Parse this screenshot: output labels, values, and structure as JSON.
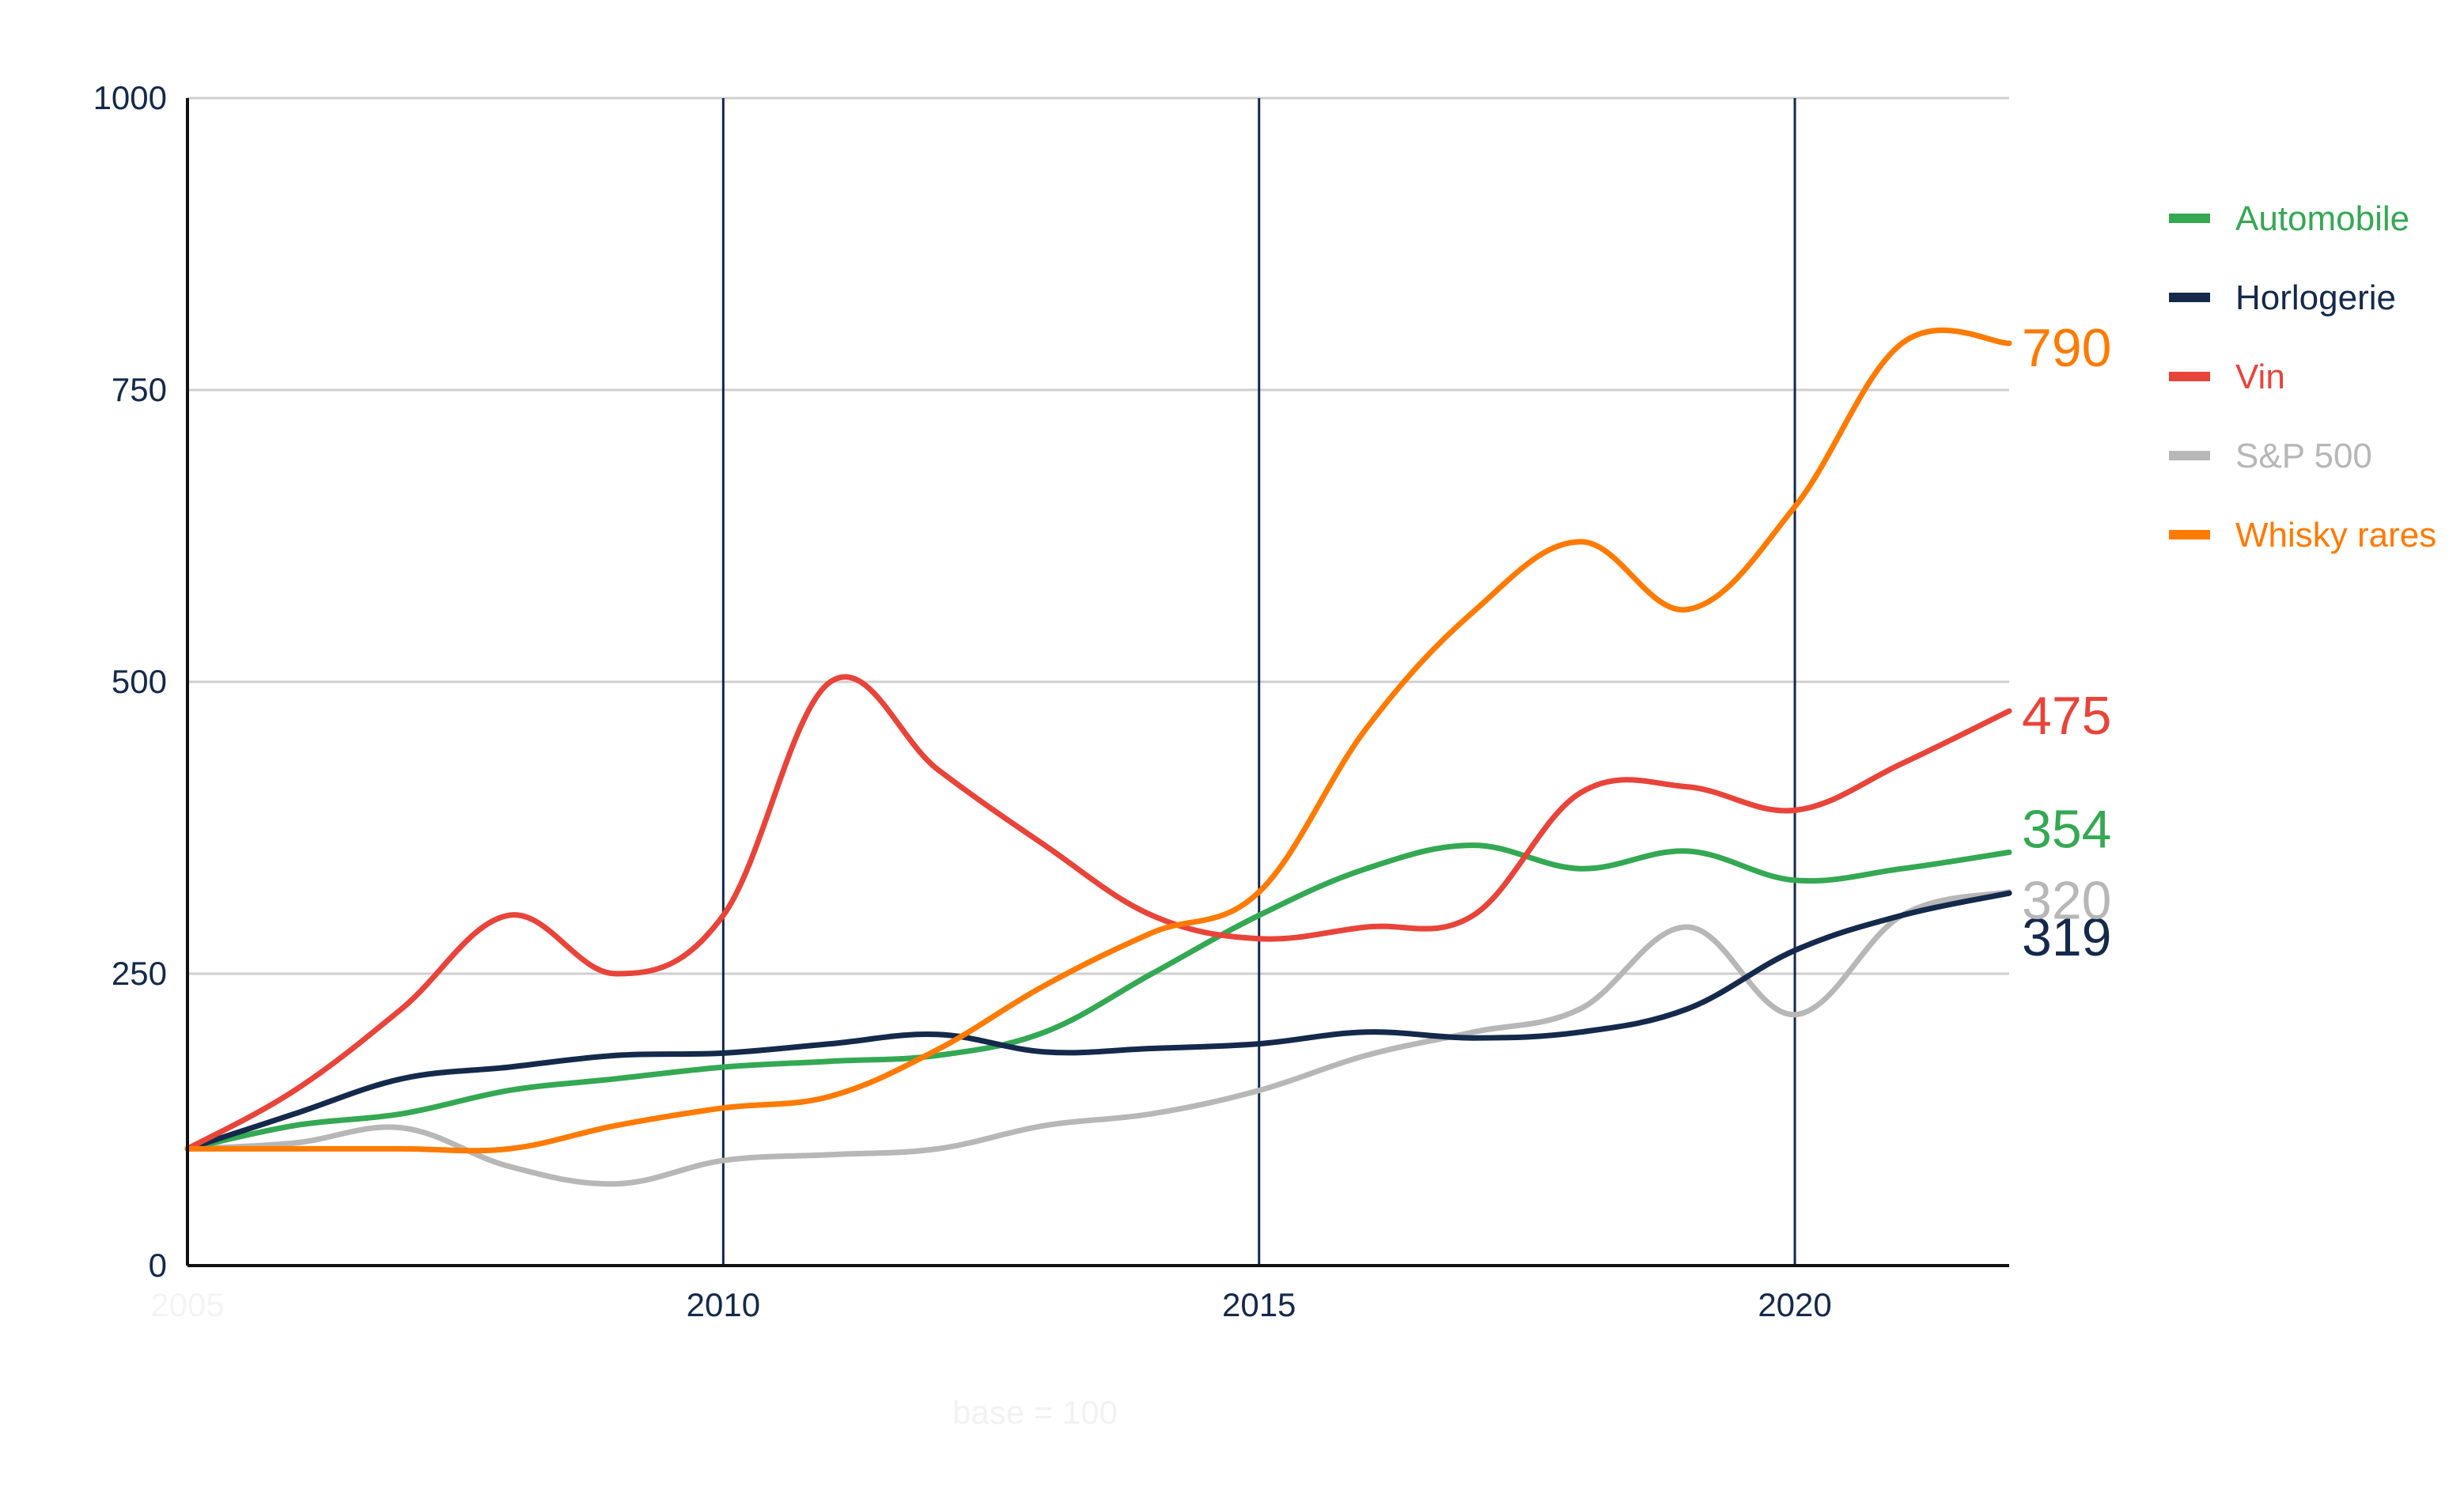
{
  "chart_data": {
    "type": "line",
    "title": "",
    "xlabel": "base = 100",
    "ylabel": "",
    "x": [
      2005,
      2006,
      2007,
      2008,
      2009,
      2010,
      2011,
      2012,
      2013,
      2014,
      2015,
      2016,
      2017,
      2018,
      2019,
      2020,
      2021,
      2022
    ],
    "xlim": [
      2005,
      2022
    ],
    "ylim": [
      0,
      1000
    ],
    "x_ticks": [
      "2005",
      "2010",
      "2015",
      "2020"
    ],
    "y_ticks": [
      "0",
      "250",
      "500",
      "750",
      "1000"
    ],
    "grid": "horizontal lines at y ticks; vertical lines at 2010, 2015, 2020",
    "legend_position": "right",
    "series": [
      {
        "name": "Automobile",
        "color": "#34a853",
        "end_label": "354",
        "values": [
          100,
          120,
          130,
          150,
          160,
          170,
          175,
          180,
          200,
          250,
          300,
          340,
          360,
          340,
          355,
          330,
          340,
          354
        ]
      },
      {
        "name": "Horlogerie",
        "color": "#14294b",
        "end_label": "319",
        "values": [
          100,
          130,
          160,
          170,
          180,
          182,
          190,
          198,
          183,
          186,
          190,
          200,
          195,
          200,
          220,
          270,
          300,
          319
        ]
      },
      {
        "name": "Vin",
        "color": "#e8443a",
        "end_label": "475",
        "values": [
          100,
          150,
          220,
          300,
          250,
          300,
          500,
          425,
          360,
          300,
          280,
          290,
          300,
          405,
          410,
          390,
          430,
          475
        ]
      },
      {
        "name": "S&P 500",
        "color": "#b7b7b7",
        "end_label": "320",
        "values": [
          100,
          105,
          118,
          85,
          70,
          90,
          95,
          100,
          120,
          130,
          150,
          180,
          200,
          220,
          290,
          215,
          300,
          320
        ]
      },
      {
        "name": "Whisky rares",
        "color": "#ff7a00",
        "end_label": "790",
        "values": [
          100,
          100,
          100,
          100,
          120,
          135,
          145,
          185,
          240,
          285,
          320,
          460,
          560,
          620,
          562,
          650,
          790,
          790
        ]
      }
    ]
  }
}
